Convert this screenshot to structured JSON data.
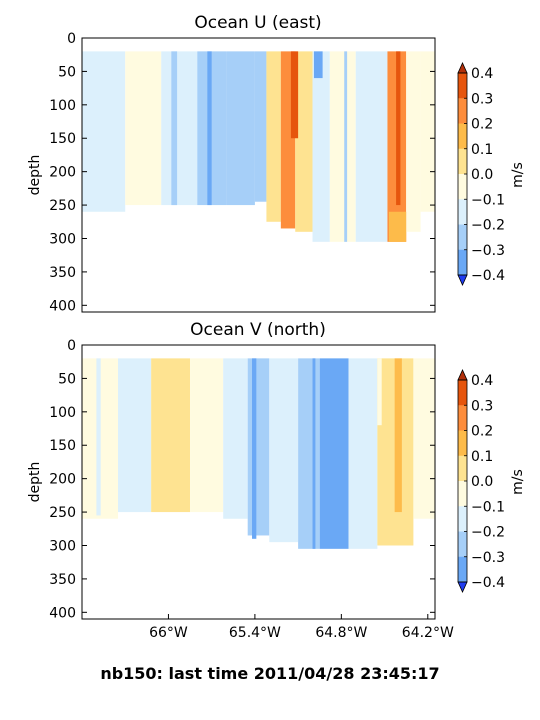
{
  "caption": "nb150: last time 2011/04/28 23:45:17",
  "chart_data": [
    {
      "type": "heatmap",
      "title": "Ocean U (east)",
      "ylabel": "depth",
      "xlabel": "",
      "ylim": [
        410,
        0
      ],
      "y_ticks": [
        "0",
        "50",
        "100",
        "150",
        "200",
        "250",
        "300",
        "350",
        "400"
      ],
      "x_ticks": [],
      "colorbar": {
        "label": "m/s",
        "ticks": [
          "0.4",
          "0.3",
          "0.2",
          "0.1",
          "0.0",
          "−0.1",
          "−0.2",
          "−0.3",
          "−0.4"
        ],
        "extend": "both"
      },
      "description": "depth–longitude section; values mostly −0.1 to −0.2 west of 65.3°W, strong positive (0.2–0.4) band near 65.2°W and again near 64.4°W",
      "columns": [
        {
          "lon0": -66.6,
          "lon1": -66.3,
          "v": -0.05,
          "bottom": 260
        },
        {
          "lon0": -66.3,
          "lon1": -66.05,
          "v": 0.02,
          "bottom": 250
        },
        {
          "lon0": -66.05,
          "lon1": -65.8,
          "v": -0.05,
          "bottom": 250
        },
        {
          "lon0": -65.8,
          "lon1": -65.6,
          "v": -0.15,
          "bottom": 250
        },
        {
          "lon0": -65.6,
          "lon1": -65.4,
          "v": -0.15,
          "bottom": 250
        },
        {
          "lon0": -65.4,
          "lon1": -65.32,
          "v": -0.15,
          "bottom": 245
        },
        {
          "lon0": -65.32,
          "lon1": -65.22,
          "v": 0.15,
          "bottom": 275
        },
        {
          "lon0": -65.22,
          "lon1": -65.12,
          "v": 0.3,
          "bottom": 285
        },
        {
          "lon0": -65.12,
          "lon1": -65.0,
          "v": 0.15,
          "bottom": 290
        },
        {
          "lon0": -65.0,
          "lon1": -64.88,
          "v": -0.05,
          "bottom": 305
        },
        {
          "lon0": -64.88,
          "lon1": -64.7,
          "v": 0.05,
          "bottom": 305
        },
        {
          "lon0": -64.7,
          "lon1": -64.48,
          "v": -0.05,
          "bottom": 305
        },
        {
          "lon0": -64.48,
          "lon1": -64.35,
          "v": 0.3,
          "bottom": 305
        },
        {
          "lon0": -64.35,
          "lon1": -64.25,
          "v": 0.05,
          "bottom": 290
        },
        {
          "lon0": -64.25,
          "lon1": -64.15,
          "v": 0.0,
          "bottom": 260
        }
      ],
      "strips": [
        {
          "lon0": -65.98,
          "lon1": -65.94,
          "v": -0.15,
          "top": 20,
          "bottom": 250
        },
        {
          "lon0": -65.73,
          "lon1": -65.7,
          "v": -0.25,
          "top": 20,
          "bottom": 250
        },
        {
          "lon0": -65.15,
          "lon1": -65.1,
          "v": 0.4,
          "top": 20,
          "bottom": 150
        },
        {
          "lon0": -64.99,
          "lon1": -64.93,
          "v": -0.25,
          "top": 20,
          "bottom": 60
        },
        {
          "lon0": -64.78,
          "lon1": -64.76,
          "v": -0.15,
          "top": 20,
          "bottom": 305
        },
        {
          "lon0": -64.42,
          "lon1": -64.39,
          "v": 0.4,
          "top": 20,
          "bottom": 250
        },
        {
          "lon0": -64.47,
          "lon1": -64.35,
          "v": 0.25,
          "top": 260,
          "bottom": 305
        }
      ]
    },
    {
      "type": "heatmap",
      "title": "Ocean V (north)",
      "ylabel": "depth",
      "xlabel": "",
      "ylim": [
        410,
        0
      ],
      "y_ticks": [
        "0",
        "50",
        "100",
        "150",
        "200",
        "250",
        "300",
        "350",
        "400"
      ],
      "x_ticks": [
        "66°W",
        "65.4°W",
        "64.8°W",
        "64.2°W"
      ],
      "x_tick_lon": [
        -66.0,
        -65.4,
        -64.8,
        -64.2
      ],
      "colorbar": {
        "label": "m/s",
        "ticks": [
          "0.4",
          "0.3",
          "0.2",
          "0.1",
          "0.0",
          "−0.1",
          "−0.2",
          "−0.3",
          "−0.4"
        ],
        "extend": "both"
      },
      "description": "depth–longitude section; positive (0.1–0.2) band near 66°W, negative (−0.1 to −0.3) between 65.4°W and 64.7°W, positive (0.2–0.3) near 64.4°W",
      "columns": [
        {
          "lon0": -66.6,
          "lon1": -66.35,
          "v": 0.05,
          "bottom": 260
        },
        {
          "lon0": -66.35,
          "lon1": -66.12,
          "v": -0.05,
          "bottom": 250
        },
        {
          "lon0": -66.12,
          "lon1": -65.85,
          "v": 0.15,
          "bottom": 250
        },
        {
          "lon0": -65.85,
          "lon1": -65.62,
          "v": 0.05,
          "bottom": 250
        },
        {
          "lon0": -65.62,
          "lon1": -65.45,
          "v": -0.05,
          "bottom": 260
        },
        {
          "lon0": -65.45,
          "lon1": -65.3,
          "v": -0.15,
          "bottom": 285
        },
        {
          "lon0": -65.3,
          "lon1": -65.1,
          "v": -0.05,
          "bottom": 295
        },
        {
          "lon0": -65.1,
          "lon1": -64.95,
          "v": -0.15,
          "bottom": 305
        },
        {
          "lon0": -64.95,
          "lon1": -64.75,
          "v": -0.25,
          "bottom": 305
        },
        {
          "lon0": -64.75,
          "lon1": -64.55,
          "v": -0.05,
          "bottom": 305
        },
        {
          "lon0": -64.55,
          "lon1": -64.3,
          "v": 0.15,
          "bottom": 300
        },
        {
          "lon0": -64.3,
          "lon1": -64.15,
          "v": 0.05,
          "bottom": 260
        }
      ],
      "strips": [
        {
          "lon0": -66.5,
          "lon1": -66.47,
          "v": -0.05,
          "top": 20,
          "bottom": 255
        },
        {
          "lon0": -65.42,
          "lon1": -65.39,
          "v": -0.25,
          "top": 20,
          "bottom": 290
        },
        {
          "lon0": -65.0,
          "lon1": -64.98,
          "v": -0.25,
          "top": 20,
          "bottom": 305
        },
        {
          "lon0": -64.43,
          "lon1": -64.38,
          "v": 0.25,
          "top": 20,
          "bottom": 250
        },
        {
          "lon0": -64.55,
          "lon1": -64.52,
          "v": 0.05,
          "top": 20,
          "bottom": 120
        }
      ]
    }
  ]
}
